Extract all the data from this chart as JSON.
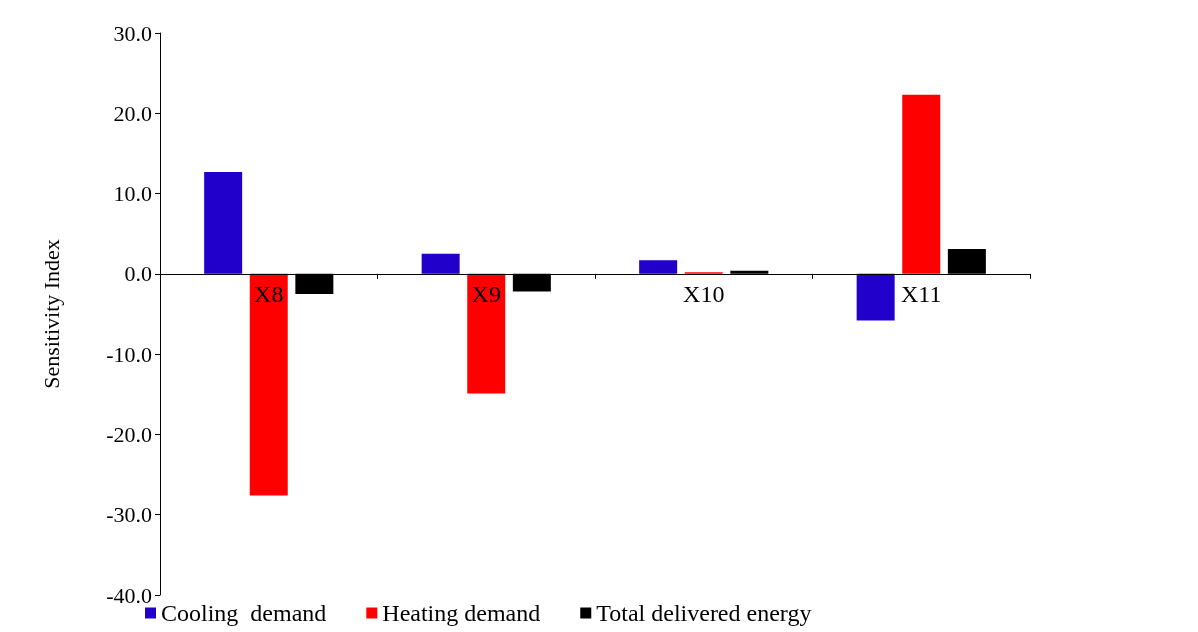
{
  "chart_data": {
    "type": "bar",
    "ylabel": "Sensitivity Index",
    "categories": [
      "X8",
      "X9",
      "X10",
      "X11"
    ],
    "series": [
      {
        "name": "Cooling  demand",
        "color": "#2200cc",
        "values": [
          12.7,
          2.5,
          1.7,
          -5.8
        ]
      },
      {
        "name": "Heating demand",
        "color": "#ff0000",
        "values": [
          -27.6,
          -14.9,
          0.2,
          22.3
        ]
      },
      {
        "name": "Total delivered energy",
        "color": "#000000",
        "values": [
          -2.5,
          -2.2,
          0.4,
          3.1
        ]
      }
    ],
    "ylim": [
      -40,
      30
    ],
    "yticks": [
      {
        "value": -40,
        "label": "-40.0"
      },
      {
        "value": -30,
        "label": "-30.0"
      },
      {
        "value": -20,
        "label": "-20.0"
      },
      {
        "value": -10,
        "label": "-10.0"
      },
      {
        "value": 0,
        "label": "0.0"
      },
      {
        "value": 10,
        "label": "10.0"
      },
      {
        "value": 20,
        "label": "20.0"
      },
      {
        "value": 30,
        "label": "30.0"
      }
    ],
    "grid": false,
    "legend": "bottom"
  }
}
